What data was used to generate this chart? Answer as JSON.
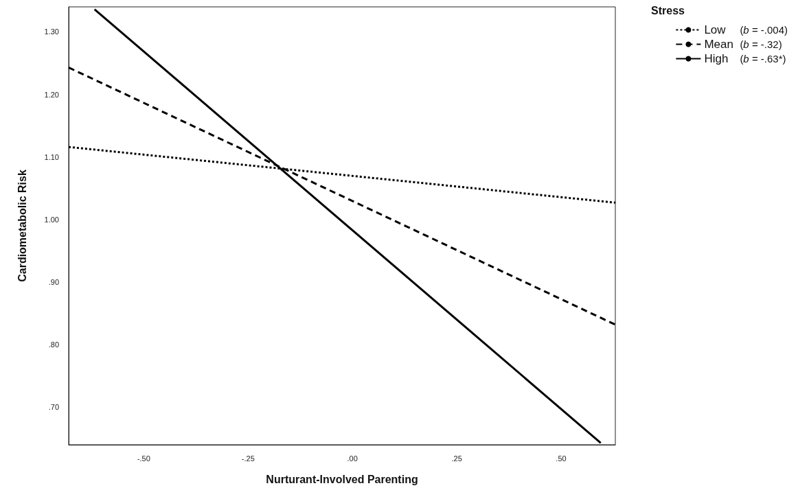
{
  "chart_data": {
    "type": "line",
    "xlabel": "Nurturant-Involved Parenting",
    "ylabel": "Cardiometabolic Risk",
    "legend_title": "Stress",
    "xlim": [
      -0.68,
      0.63
    ],
    "ylim": [
      0.64,
      1.34
    ],
    "xticks": [
      {
        "value": -0.5,
        "label": "-.50"
      },
      {
        "value": -0.25,
        "label": "-.25"
      },
      {
        "value": 0,
        "label": ".00"
      },
      {
        "value": 0.25,
        "label": ".25"
      },
      {
        "value": 0.5,
        "label": ".50"
      }
    ],
    "yticks": [
      {
        "value": 0.7,
        "label": ".70"
      },
      {
        "value": 0.8,
        "label": ".80"
      },
      {
        "value": 0.9,
        "label": ".90"
      },
      {
        "value": 1.0,
        "label": "1.00"
      },
      {
        "value": 1.1,
        "label": "1.10"
      },
      {
        "value": 1.2,
        "label": "1.20"
      },
      {
        "value": 1.3,
        "label": "1.30"
      }
    ],
    "series": [
      {
        "name": "Low",
        "color": "#000000",
        "line_style": "dotted",
        "x": [
          -0.68,
          0.63
        ],
        "values": [
          1.116,
          1.027
        ]
      },
      {
        "name": "Mean",
        "color": "#000000",
        "line_style": "dashed",
        "x": [
          -0.68,
          0.63
        ],
        "values": [
          1.243,
          0.832
        ]
      },
      {
        "name": "High",
        "color": "#000000",
        "line_style": "solid",
        "x": [
          -0.618,
          0.595
        ],
        "values": [
          1.336,
          0.643
        ]
      }
    ],
    "annotations": [
      "(b = -.004)",
      "(b = -.32)",
      "(b = -.63*)"
    ],
    "grid": false,
    "legend": "top right",
    "marker": "none"
  }
}
